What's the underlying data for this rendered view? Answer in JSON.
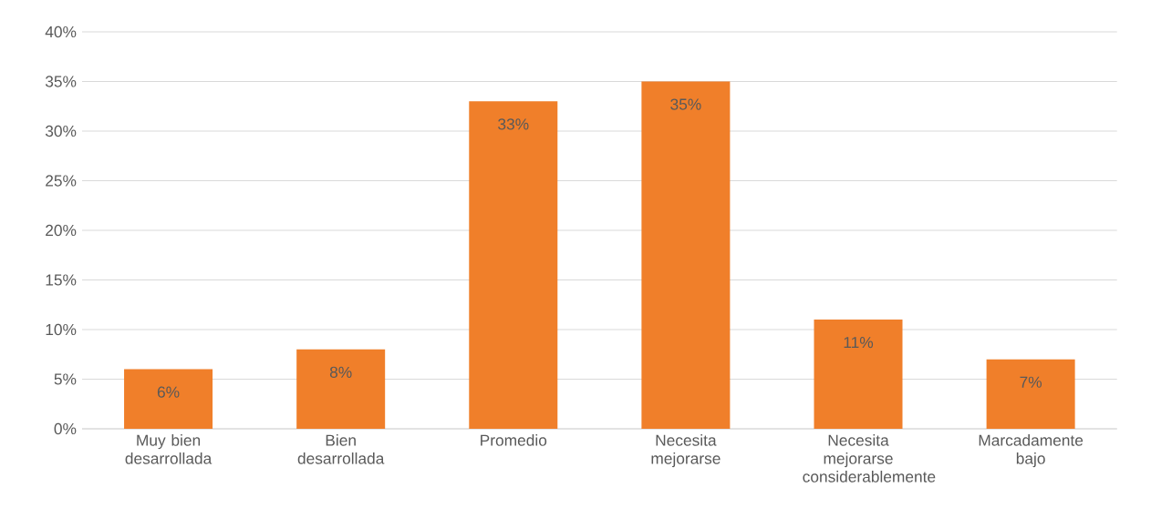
{
  "chart_data": {
    "type": "bar",
    "categories": [
      "Muy bien desarrollada",
      "Bien desarrollada",
      "Promedio",
      "Necesita mejorarse",
      "Necesita mejorarse considerablemente",
      "Marcadamente bajo"
    ],
    "values": [
      6,
      8,
      33,
      35,
      11,
      7
    ],
    "value_labels": [
      "6%",
      "8%",
      "33%",
      "35%",
      "11%",
      "7%"
    ],
    "color": "#f07f2a",
    "ylim": [
      0,
      40
    ],
    "yticks": [
      {
        "value": 0,
        "label": "0%"
      },
      {
        "value": 5,
        "label": "5%"
      },
      {
        "value": 10,
        "label": "10%"
      },
      {
        "value": 15,
        "label": "15%"
      },
      {
        "value": 20,
        "label": "20%"
      },
      {
        "value": 25,
        "label": "25%"
      },
      {
        "value": 30,
        "label": "30%"
      },
      {
        "value": 35,
        "label": "35%"
      },
      {
        "value": 40,
        "label": "40%"
      }
    ],
    "grid": "y"
  }
}
